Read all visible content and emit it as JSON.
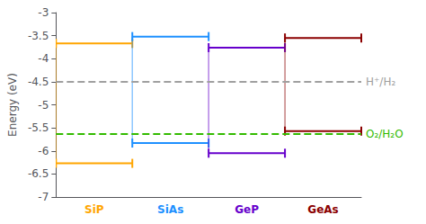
{
  "chart_data": {
    "type": "band_alignment",
    "ylabel": "Energy (eV)",
    "categories": [
      "SiP",
      "SiAs",
      "GeP",
      "GeAs"
    ],
    "cbm": [
      -3.67,
      -3.52,
      -3.76,
      -3.55
    ],
    "vbm": [
      -6.27,
      -5.83,
      -6.05,
      -5.57
    ],
    "colors": [
      "#FFA500",
      "#1E90FF",
      "#6600CC",
      "#8B0000"
    ],
    "reference_lines": [
      {
        "value": -4.5,
        "label": "H⁺/H₂",
        "color": "#A0A0A0",
        "line_style": "dashed"
      },
      {
        "value": -5.63,
        "label": "O₂/H₂O",
        "color": "#33BB00",
        "line_style": "dashed"
      }
    ],
    "ylim": [
      -7,
      -3
    ],
    "yticks": [
      -7,
      -6.5,
      -6,
      -5.5,
      -5,
      -4.5,
      -4,
      -3.5,
      -3
    ],
    "grid": false
  }
}
